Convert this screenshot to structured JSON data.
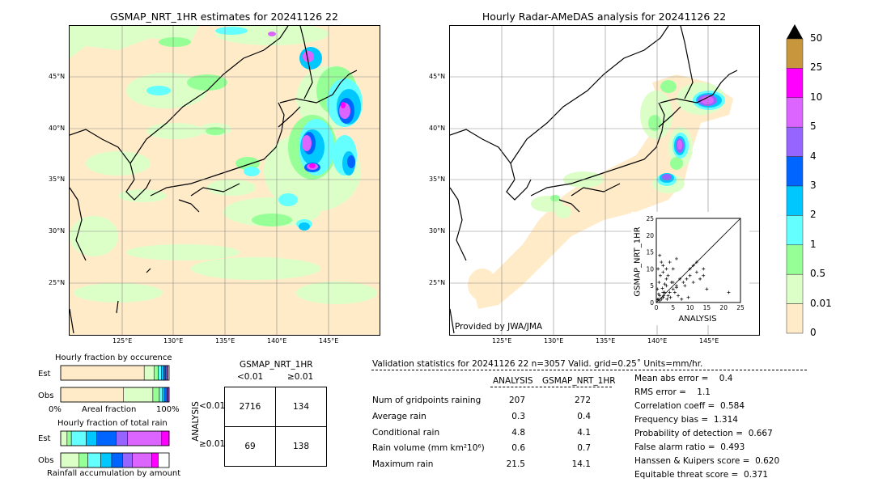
{
  "left_map": {
    "title": "GSMAP_NRT_1HR estimates for 20241126 22",
    "lat_ticks": [
      "45°N",
      "40°N",
      "35°N",
      "30°N",
      "25°N"
    ],
    "lon_ticks": [
      "125°E",
      "130°E",
      "135°E",
      "140°E",
      "145°E"
    ]
  },
  "right_map": {
    "title": "Hourly Radar-AMeDAS analysis for 20241126 22",
    "lat_ticks": [
      "45°N",
      "40°N",
      "35°N",
      "30°N",
      "25°N"
    ],
    "lon_ticks": [
      "125°E",
      "130°E",
      "135°E",
      "140°E",
      "145°E"
    ],
    "credit": "Provided by JWA/JMA"
  },
  "colorbar": {
    "labels": [
      "50",
      "25",
      "10",
      "5",
      "4",
      "3",
      "2",
      "1",
      "0.5",
      "0.01",
      "0"
    ],
    "colors": [
      "#c8963c",
      "#ff00ff",
      "#dc64ff",
      "#9664ff",
      "#0064ff",
      "#00c8ff",
      "#64ffff",
      "#96ff96",
      "#dcffc8",
      "#ffebc8"
    ]
  },
  "chart_data": [
    {
      "type": "scatter",
      "ylabel": "GSMAP_NRT_1HR",
      "xlabel": "ANALYSIS",
      "xlim": [
        0,
        25
      ],
      "ylim": [
        0,
        25
      ],
      "x_ticks": [
        "0",
        "5",
        "10",
        "15",
        "20",
        "25"
      ],
      "y_ticks": [
        "0",
        "5",
        "10",
        "15",
        "20",
        "25"
      ],
      "points": [
        [
          0.5,
          1
        ],
        [
          1,
          0.5
        ],
        [
          1,
          2
        ],
        [
          1.5,
          1
        ],
        [
          2,
          3
        ],
        [
          2,
          1.5
        ],
        [
          0.3,
          4
        ],
        [
          0.8,
          6
        ],
        [
          1.2,
          8
        ],
        [
          0.5,
          10
        ],
        [
          1.5,
          12
        ],
        [
          2.5,
          3
        ],
        [
          3,
          5
        ],
        [
          3.5,
          2
        ],
        [
          4,
          3
        ],
        [
          4.5,
          6
        ],
        [
          5,
          4
        ],
        [
          5.5,
          3
        ],
        [
          6,
          5
        ],
        [
          7,
          7
        ],
        [
          8,
          6
        ],
        [
          8.5,
          5
        ],
        [
          9,
          7
        ],
        [
          10,
          8
        ],
        [
          11,
          6
        ],
        [
          12,
          9
        ],
        [
          13,
          7
        ],
        [
          14,
          8
        ],
        [
          1,
          14
        ],
        [
          2,
          11
        ],
        [
          3,
          10
        ],
        [
          2,
          9
        ],
        [
          4,
          12
        ],
        [
          5,
          10
        ],
        [
          6,
          13
        ],
        [
          2.5,
          5.5
        ],
        [
          3,
          7
        ],
        [
          3.5,
          8
        ],
        [
          1.8,
          4.2
        ],
        [
          0.7,
          2.5
        ],
        [
          0.4,
          0.8
        ],
        [
          2.2,
          2
        ],
        [
          3.2,
          1
        ],
        [
          4.2,
          1.5
        ],
        [
          6.5,
          2
        ],
        [
          7.5,
          1
        ],
        [
          9.5,
          1.5
        ],
        [
          15,
          4
        ],
        [
          21.5,
          3
        ],
        [
          12,
          12
        ],
        [
          14,
          10
        ],
        [
          11,
          11
        ],
        [
          10,
          10
        ],
        [
          6,
          4.5
        ],
        [
          5,
          6
        ]
      ]
    },
    {
      "type": "bar",
      "title": "Hourly fraction by occurence",
      "categories": [
        "Est",
        "Obs"
      ],
      "xlabel_left": "0%",
      "xlabel_mid": "Areal fraction",
      "xlabel_right": "100%",
      "series": [
        {
          "color": "#ffebc8",
          "values": [
            0.77,
            0.58
          ]
        },
        {
          "color": "#dcffc8",
          "values": [
            0.09,
            0.27
          ]
        },
        {
          "color": "#96ff96",
          "values": [
            0.04,
            0.06
          ]
        },
        {
          "color": "#64ffff",
          "values": [
            0.03,
            0.03
          ]
        },
        {
          "color": "#00c8ff",
          "values": [
            0.02,
            0.02
          ]
        },
        {
          "color": "#0064ff",
          "values": [
            0.02,
            0.02
          ]
        },
        {
          "color": "#9664ff",
          "values": [
            0.01,
            0.01
          ]
        },
        {
          "color": "#dc64ff",
          "values": [
            0.01,
            0.01
          ]
        }
      ]
    },
    {
      "type": "bar",
      "title": "Hourly fraction of total rain",
      "footer": "Rainfall accumulation by amount",
      "categories": [
        "Est",
        "Obs"
      ],
      "series": [
        {
          "color": "#dcffc8",
          "values": [
            0.06,
            0.17
          ]
        },
        {
          "color": "#96ff96",
          "values": [
            0.04,
            0.08
          ]
        },
        {
          "color": "#64ffff",
          "values": [
            0.14,
            0.12
          ]
        },
        {
          "color": "#00c8ff",
          "values": [
            0.1,
            0.1
          ]
        },
        {
          "color": "#0064ff",
          "values": [
            0.18,
            0.1
          ]
        },
        {
          "color": "#9664ff",
          "values": [
            0.11,
            0.09
          ]
        },
        {
          "color": "#dc64ff",
          "values": [
            0.32,
            0.18
          ]
        },
        {
          "color": "#ff00ff",
          "values": [
            0.07,
            0.06
          ]
        }
      ]
    }
  ],
  "contingency": {
    "header": "GSMAP_NRT_1HR",
    "col_labels": [
      "<0.01",
      "≥0.01"
    ],
    "row_axis": "ANALYSIS",
    "row_labels": [
      "<0.01",
      "≥0.01"
    ],
    "cells": [
      [
        "2716",
        "134"
      ],
      [
        "69",
        "138"
      ]
    ]
  },
  "validation": {
    "header": "Validation statistics for 20241126 22  n=3057 Valid. grid=0.25˚ Units=mm/hr.",
    "col_analysis": "ANALYSIS",
    "col_gsmap": "GSMAP_NRT_1HR",
    "rows": [
      {
        "label": "Num of gridpoints raining",
        "a": "207",
        "g": "272"
      },
      {
        "label": "Average rain",
        "a": "0.3",
        "g": "0.4"
      },
      {
        "label": "Conditional rain",
        "a": "4.8",
        "g": "4.1"
      },
      {
        "label": "Rain volume (mm km²10⁶)",
        "a": "0.6",
        "g": "0.7"
      },
      {
        "label": "Maximum rain",
        "a": "21.5",
        "g": "14.1"
      }
    ],
    "scores": [
      "Mean abs error =    0.4",
      "RMS error =    1.1",
      "Correlation coeff =  0.584",
      "Frequency bias =  1.314",
      "Probability of detection =  0.667",
      "False alarm ratio =  0.493",
      "Hanssen & Kuipers score =  0.620",
      "Equitable threat score =  0.371"
    ]
  }
}
